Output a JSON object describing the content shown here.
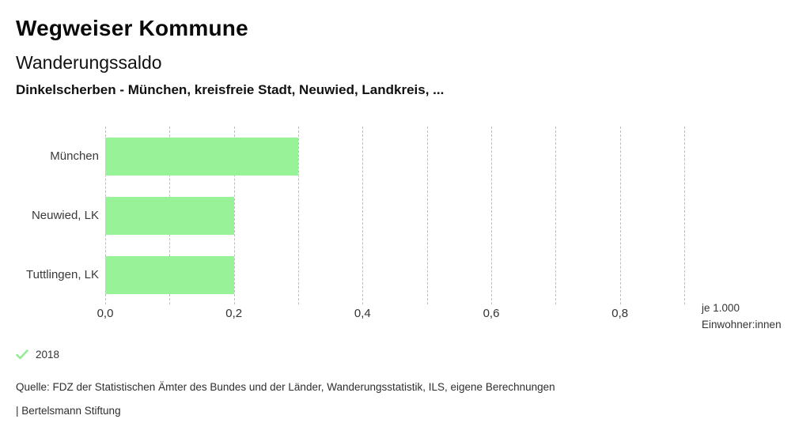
{
  "header": {
    "title": "Wegweiser Kommune",
    "chart_title": "Wanderungssaldo",
    "selection": "Dinkelscherben - München, kreisfreie Stadt, Neuwied, Landkreis, ..."
  },
  "chart_data": {
    "type": "bar",
    "orientation": "horizontal",
    "title": "Wanderungssaldo",
    "categories": [
      "München",
      "Neuwied, LK",
      "Tuttlingen, LK"
    ],
    "series": [
      {
        "name": "2018",
        "values": [
          0.3,
          0.2,
          0.2
        ]
      }
    ],
    "xlim": [
      0,
      0.9
    ],
    "gridline_step": 0.1,
    "grid": "dashed-vertical",
    "x_ticks": [
      {
        "value": 0.0,
        "label": "0,0"
      },
      {
        "value": 0.2,
        "label": "0,2"
      },
      {
        "value": 0.4,
        "label": "0,4"
      },
      {
        "value": 0.6,
        "label": "0,6"
      },
      {
        "value": 0.8,
        "label": "0,8"
      }
    ],
    "x_unit_lines": [
      "je 1.000",
      "Einwohner:innen"
    ],
    "bar_color": "#98f398",
    "legend_position": "bottom-left"
  },
  "legend": {
    "items": [
      {
        "icon": "check-icon",
        "label": "2018",
        "color": "#94ec94"
      }
    ]
  },
  "footer": {
    "source": "Quelle: FDZ der Statistischen Ämter des Bundes und der Länder, Wanderungsstatistik, ILS, eigene Berechnungen",
    "attribution": "| Bertelsmann Stiftung"
  }
}
